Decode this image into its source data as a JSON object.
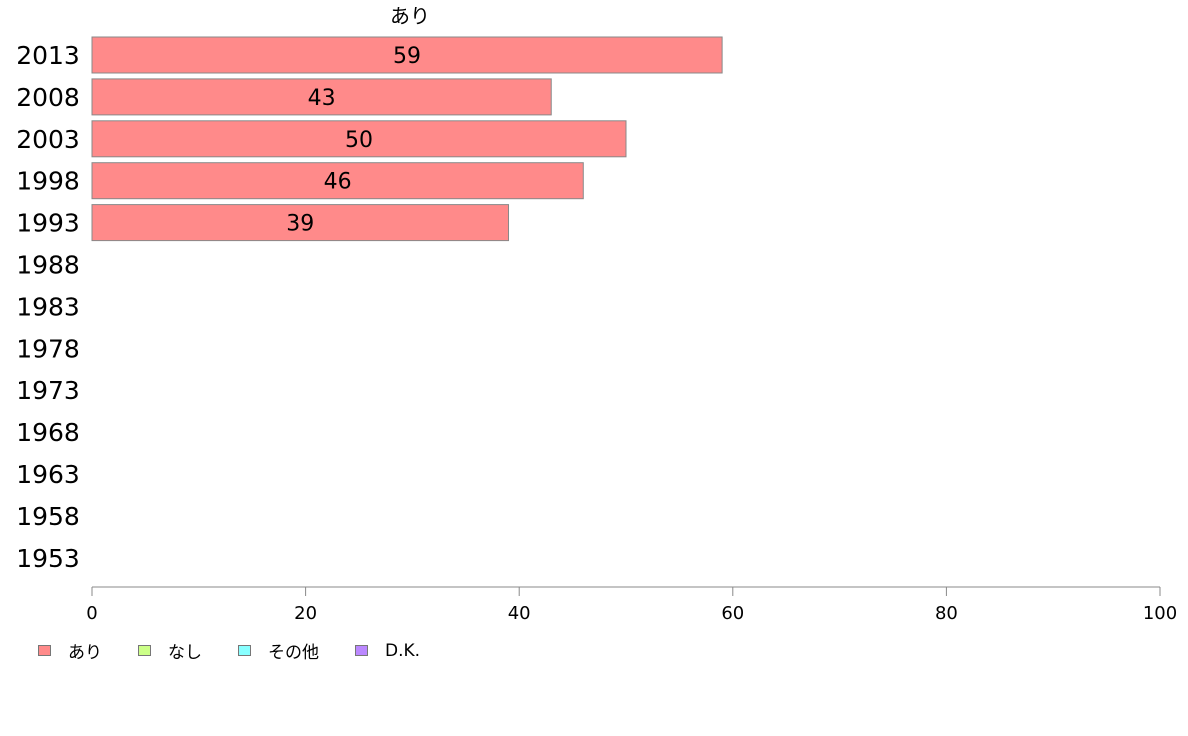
{
  "chart_data": {
    "type": "bar",
    "orientation": "horizontal",
    "categories": [
      "2013",
      "2008",
      "2003",
      "1998",
      "1993",
      "1988",
      "1983",
      "1978",
      "1973",
      "1968",
      "1963",
      "1958",
      "1953"
    ],
    "series": [
      {
        "name": "あり",
        "color": "#ff8a8a",
        "values": [
          59,
          43,
          50,
          46,
          39,
          null,
          null,
          null,
          null,
          null,
          null,
          null,
          null
        ]
      }
    ],
    "data_labels": [
      "59",
      "43",
      "50",
      "46",
      "39"
    ],
    "xlim": [
      0,
      100
    ],
    "xticks": [
      0,
      20,
      40,
      60,
      80,
      100
    ],
    "xlabel": "",
    "ylabel": "",
    "grid": false,
    "legend": {
      "position": "bottom-left",
      "items": [
        {
          "label": "あり",
          "color": "#ff8a8a"
        },
        {
          "label": "なし",
          "color": "#ccff88"
        },
        {
          "label": "その他",
          "color": "#88ffff"
        },
        {
          "label": "D.K.",
          "color": "#bb88ff"
        }
      ]
    }
  }
}
